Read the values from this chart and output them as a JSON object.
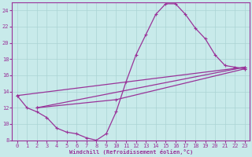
{
  "xlabel": "Windchill (Refroidissement éolien,°C)",
  "bg_color": "#c8eaea",
  "grid_color": "#aad4d4",
  "line_color": "#993399",
  "xlim": [
    -0.5,
    23.5
  ],
  "ylim": [
    8,
    25
  ],
  "xticks": [
    0,
    1,
    2,
    3,
    4,
    5,
    6,
    7,
    8,
    9,
    10,
    11,
    12,
    13,
    14,
    15,
    16,
    17,
    18,
    19,
    20,
    21,
    22,
    23
  ],
  "yticks": [
    8,
    10,
    12,
    14,
    16,
    18,
    20,
    22,
    24
  ],
  "lines": [
    {
      "x": [
        0,
        1,
        2,
        3,
        4,
        5,
        6,
        7,
        8,
        9,
        10,
        11,
        12,
        13,
        14,
        15,
        16,
        17,
        18,
        19,
        20,
        21,
        22,
        23
      ],
      "y": [
        13.5,
        12.0,
        11.5,
        10.8,
        9.5,
        9.0,
        8.8,
        8.3,
        8.0,
        8.8,
        11.5,
        15.2,
        18.5,
        21.0,
        23.5,
        24.8,
        24.8,
        23.5,
        21.8,
        20.5,
        18.5,
        17.2,
        17.0,
        16.8
      ]
    },
    {
      "x": [
        2,
        23
      ],
      "y": [
        12.0,
        17.0
      ]
    },
    {
      "x": [
        0,
        23
      ],
      "y": [
        13.5,
        17.0
      ]
    },
    {
      "x": [
        2,
        10,
        23
      ],
      "y": [
        12.0,
        13.0,
        16.8
      ]
    }
  ]
}
